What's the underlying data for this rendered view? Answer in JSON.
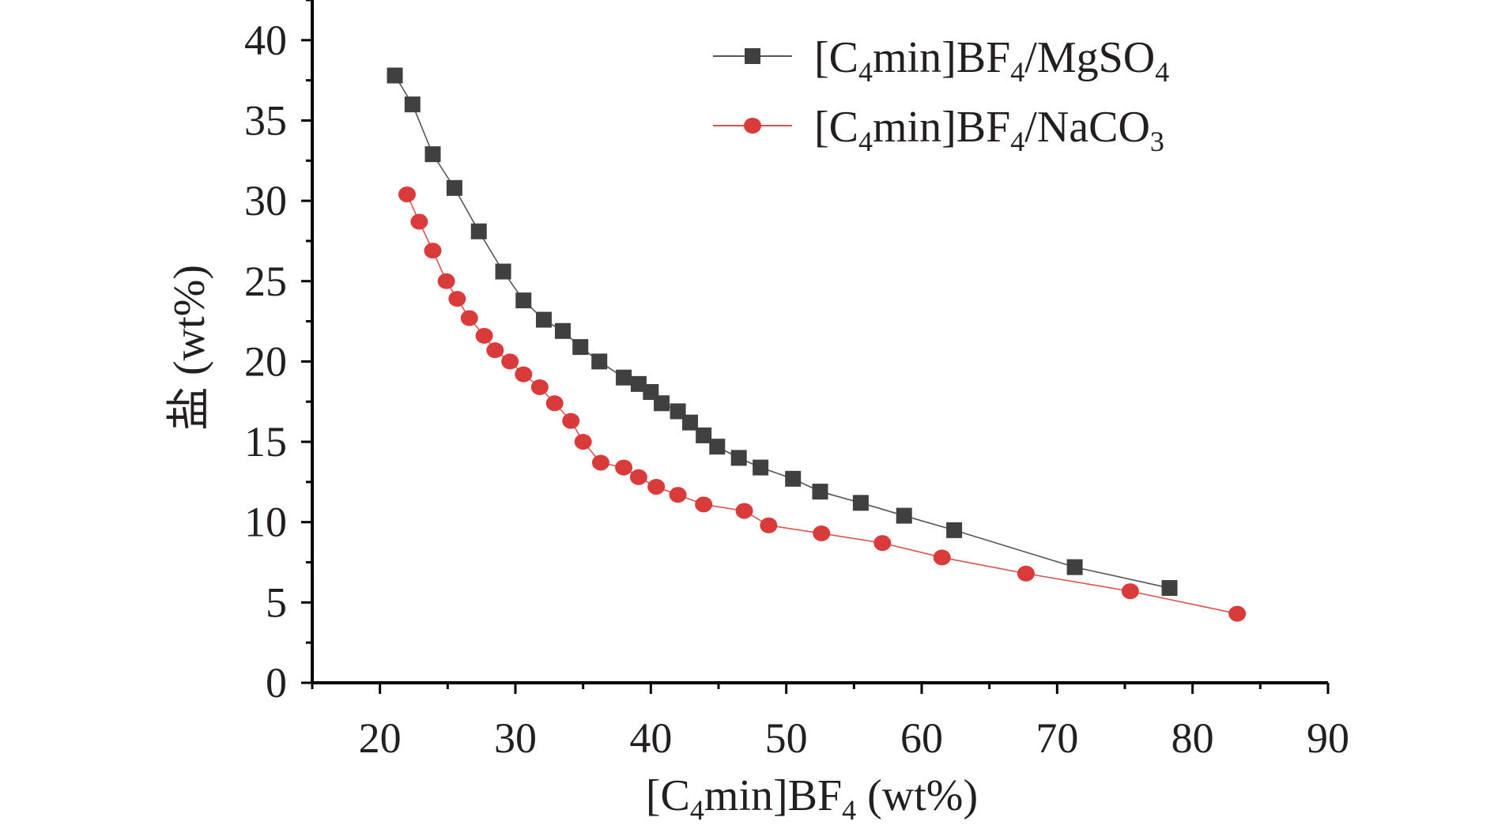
{
  "chart_data": {
    "type": "line",
    "title": "",
    "xlabel_parts": [
      "[C",
      "4",
      "min]BF",
      "4",
      " (wt%)"
    ],
    "ylabel": "盐 (wt%)",
    "xlim": [
      15,
      90
    ],
    "ylim": [
      0,
      42.5
    ],
    "xticks": [
      20,
      30,
      40,
      50,
      60,
      70,
      80,
      90
    ],
    "yticks": [
      0,
      5,
      10,
      15,
      20,
      25,
      30,
      35,
      40
    ],
    "grid": false,
    "legend_position": "top-right",
    "series": [
      {
        "name": "[C4min]BF4/MgSO4",
        "name_parts": [
          "[C",
          "4",
          "min]BF",
          "4",
          "/MgSO",
          "4"
        ],
        "marker": "square",
        "color": "#404040",
        "line_color": "#555555",
        "x": [
          21.1,
          22.4,
          23.9,
          25.5,
          27.3,
          29.1,
          30.6,
          32.1,
          33.5,
          34.8,
          36.2,
          38.0,
          39.1,
          40.0,
          40.8,
          42.0,
          42.9,
          43.9,
          44.9,
          46.5,
          48.1,
          50.5,
          52.5,
          55.5,
          58.7,
          62.4,
          71.3,
          78.3
        ],
        "y": [
          37.8,
          36.0,
          32.9,
          30.8,
          28.1,
          25.6,
          23.8,
          22.6,
          21.9,
          20.9,
          20.0,
          19.0,
          18.6,
          18.1,
          17.4,
          16.9,
          16.2,
          15.4,
          14.7,
          14.0,
          13.4,
          12.7,
          11.9,
          11.2,
          10.4,
          9.5,
          7.2,
          5.9
        ]
      },
      {
        "name": "[C4min]BF4/NaCO3",
        "name_parts": [
          "[C",
          "4",
          "min]BF",
          "4",
          "/NaCO",
          "3"
        ],
        "marker": "circle",
        "color": "#d93a3a",
        "line_color": "#d9534f",
        "x": [
          22.0,
          22.9,
          23.9,
          24.9,
          25.7,
          26.6,
          27.7,
          28.5,
          29.6,
          30.6,
          31.8,
          32.9,
          34.1,
          35.0,
          36.3,
          38.0,
          39.1,
          40.4,
          42.0,
          43.9,
          46.9,
          48.7,
          52.6,
          57.1,
          61.5,
          67.7,
          75.4,
          83.3
        ],
        "y": [
          30.4,
          28.7,
          26.9,
          25.0,
          23.9,
          22.7,
          21.6,
          20.7,
          20.0,
          19.2,
          18.4,
          17.4,
          16.3,
          15.0,
          13.7,
          13.4,
          12.8,
          12.2,
          11.7,
          11.1,
          10.7,
          9.8,
          9.3,
          8.7,
          7.8,
          6.8,
          5.7,
          4.3
        ]
      }
    ]
  }
}
